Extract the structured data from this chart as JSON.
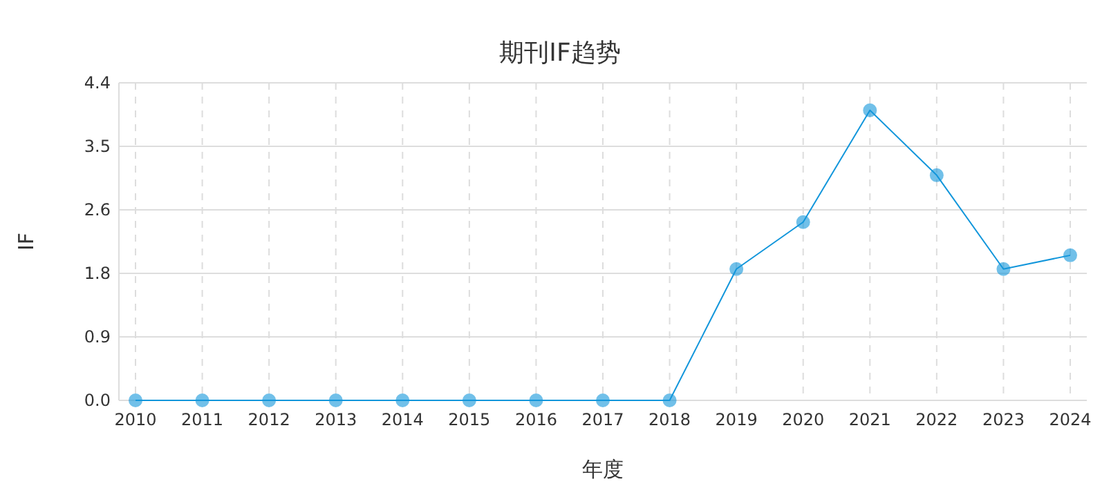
{
  "chart_data": {
    "type": "line",
    "title": "期刊IF趋势",
    "xlabel": "年度",
    "ylabel": "IF",
    "categories": [
      "2010",
      "2011",
      "2012",
      "2013",
      "2014",
      "2015",
      "2016",
      "2017",
      "2018",
      "2019",
      "2020",
      "2021",
      "2022",
      "2023",
      "2024"
    ],
    "series": [
      {
        "color": "#1296db",
        "values": [
          0,
          0,
          0,
          0,
          0,
          0,
          0,
          0,
          0,
          1.82,
          2.47,
          4.02,
          3.12,
          1.82,
          2.01
        ]
      }
    ],
    "ylim": [
      0,
      4.4
    ],
    "yticks": [
      {
        "value": 0,
        "label": "0.0"
      },
      {
        "value": 0.88,
        "label": "0.9"
      },
      {
        "value": 1.76,
        "label": "1.8"
      },
      {
        "value": 2.64,
        "label": "2.6"
      },
      {
        "value": 3.52,
        "label": "3.5"
      },
      4.4
    ],
    "grid": true,
    "marker": "circle",
    "line_style": "solid"
  }
}
